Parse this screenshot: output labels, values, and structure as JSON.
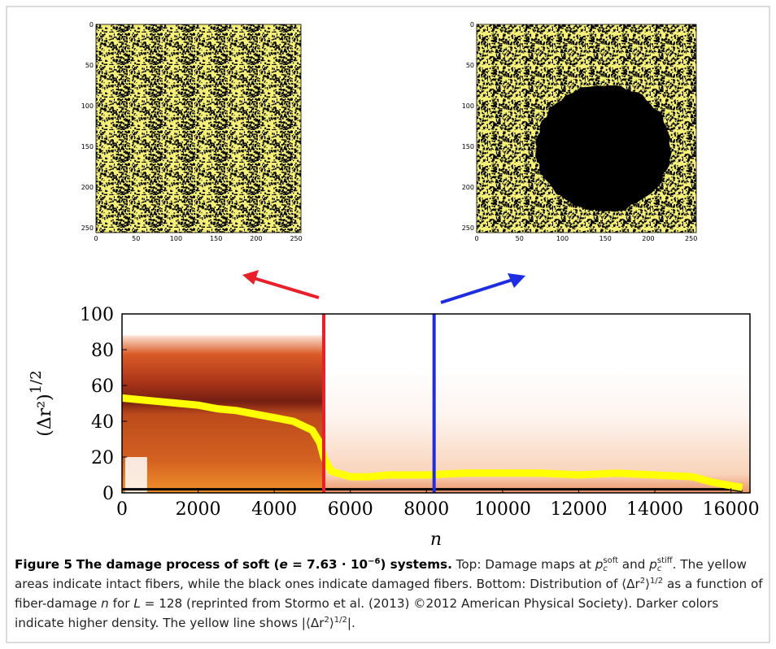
{
  "chart_data": [
    {
      "type": "heatmap",
      "xlim": [
        0,
        256
      ],
      "ylim": [
        256,
        0
      ],
      "xticks": [
        0,
        50,
        100,
        150,
        200,
        250
      ],
      "yticks": [
        0,
        50,
        100,
        150,
        200,
        250
      ],
      "colors": [
        "#f5f07a",
        "#000000"
      ]
    },
    {
      "type": "heatmap",
      "xlim": [
        0,
        256
      ],
      "ylim": [
        256,
        0
      ],
      "xticks": [
        0,
        50,
        100,
        150,
        200,
        250
      ],
      "yticks": [
        0,
        50,
        100,
        150,
        200,
        250
      ],
      "colors": [
        "#f5f07a",
        "#000000"
      ],
      "damaged_region": {
        "cx": 148,
        "cy": 152,
        "r": 78
      }
    },
    {
      "type": "line",
      "xlabel": "n",
      "ylabel": "(Δr²)",
      "ylabel_exponent": "1/2",
      "xlim": [
        0,
        16500
      ],
      "ylim": [
        0,
        100
      ],
      "xticks": [
        0,
        2000,
        4000,
        6000,
        8000,
        10000,
        12000,
        14000,
        16000
      ],
      "yticks": [
        0,
        20,
        40,
        60,
        80,
        100
      ],
      "x": [
        0,
        500,
        1000,
        1500,
        2000,
        2500,
        3000,
        3500,
        4000,
        4500,
        5000,
        5200,
        5300,
        5500,
        6000,
        6500,
        7000,
        7500,
        8000,
        9000,
        10000,
        11000,
        12000,
        13000,
        14000,
        15000,
        15500,
        16000,
        16300
      ],
      "series": [
        {
          "color": "#ffff00",
          "values": [
            53,
            52,
            51,
            50,
            49,
            47,
            46,
            44,
            42,
            40,
            35,
            28,
            20,
            12,
            9,
            9,
            10,
            10,
            10,
            11,
            11,
            11,
            10,
            11,
            10,
            9,
            6,
            4,
            3
          ]
        },
        {
          "color": "#000000",
          "values": [
            2,
            2,
            2,
            2,
            2,
            2,
            2,
            2,
            2,
            2,
            2,
            2,
            2,
            2,
            2,
            2,
            2,
            2,
            2,
            2,
            2,
            2,
            2,
            2,
            2,
            2,
            2,
            2,
            1
          ]
        }
      ],
      "vlines": [
        {
          "x": 5300,
          "color": "#e8202a"
        },
        {
          "x": 8200,
          "color": "#1f2de0"
        }
      ]
    }
  ],
  "caption": {
    "parts": [
      "Figure 5",
      "The damage process of soft (",
      "e",
      " = 7.63 · 10",
      "−6",
      ") systems.",
      " Top: Damage maps at ",
      "p",
      "c",
      "soft",
      " and ",
      "p",
      "c",
      "stiff",
      ". The yellow areas indicate intact fibers, while the black ones indicate damaged fibers. Bottom: Distribution of ",
      "⟨Δr",
      "2",
      "⟩",
      "1/2",
      " as a function of fiber-damage ",
      "n",
      " for ",
      "L",
      " = 128 (reprinted from Stormo et al. (2013) ©2012 American Physical Society). Darker colors indicate higher density. The yellow line shows |⟨Δr",
      "2",
      "⟩",
      "1/2",
      "|."
    ]
  }
}
